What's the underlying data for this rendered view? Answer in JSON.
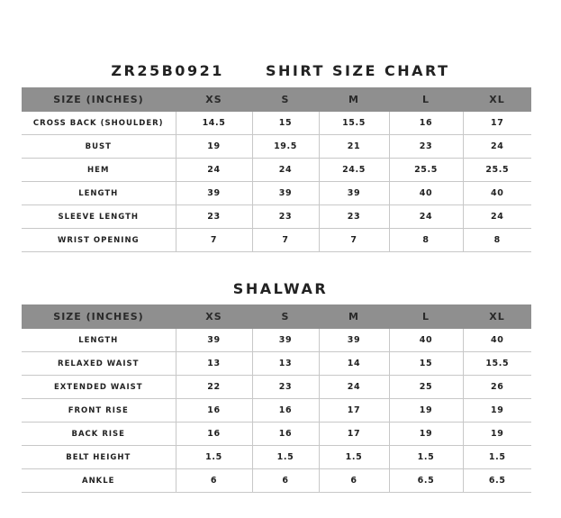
{
  "shirt": {
    "code": "ZR25B0921",
    "title": "SHIRT SIZE CHART",
    "headers": [
      "SIZE (INCHES)",
      "XS",
      "S",
      "M",
      "L",
      "XL"
    ],
    "rows": [
      [
        "CROSS BACK (SHOULDER)",
        "14.5",
        "15",
        "15.5",
        "16",
        "17"
      ],
      [
        "BUST",
        "19",
        "19.5",
        "21",
        "23",
        "24"
      ],
      [
        "HEM",
        "24",
        "24",
        "24.5",
        "25.5",
        "25.5"
      ],
      [
        "LENGTH",
        "39",
        "39",
        "39",
        "40",
        "40"
      ],
      [
        "SLEEVE LENGTH",
        "23",
        "23",
        "23",
        "24",
        "24"
      ],
      [
        "WRIST OPENING",
        "7",
        "7",
        "7",
        "8",
        "8"
      ]
    ]
  },
  "shalwar": {
    "title": "SHALWAR",
    "headers": [
      "SIZE (INCHES)",
      "XS",
      "S",
      "M",
      "L",
      "XL"
    ],
    "rows": [
      [
        "LENGTH",
        "39",
        "39",
        "39",
        "40",
        "40"
      ],
      [
        "RELAXED WAIST",
        "13",
        "13",
        "14",
        "15",
        "15.5"
      ],
      [
        "EXTENDED WAIST",
        "22",
        "23",
        "24",
        "25",
        "26"
      ],
      [
        "FRONT RISE",
        "16",
        "16",
        "17",
        "19",
        "19"
      ],
      [
        "BACK RISE",
        "16",
        "16",
        "17",
        "19",
        "19"
      ],
      [
        "BELT HEIGHT",
        "1.5",
        "1.5",
        "1.5",
        "1.5",
        "1.5"
      ],
      [
        "ANKLE",
        "6",
        "6",
        "6",
        "6.5",
        "6.5"
      ]
    ]
  },
  "colors": {
    "header_bg": "#8f8f8f",
    "grid": "#c8c8c8",
    "text": "#222222"
  }
}
